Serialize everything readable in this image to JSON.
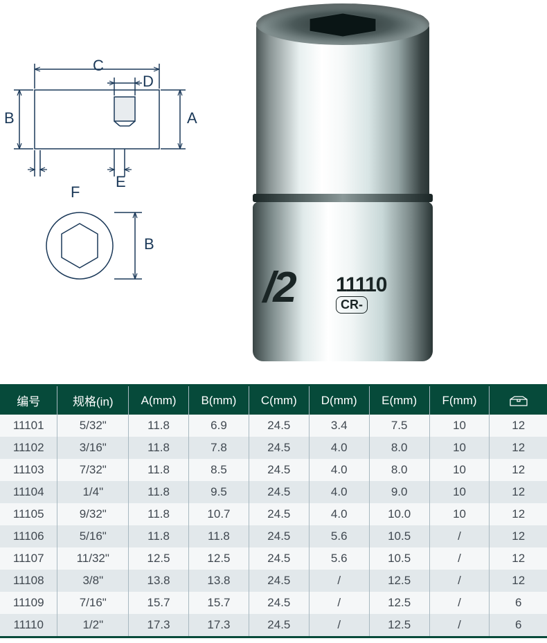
{
  "product": {
    "label_main": "/2",
    "label_num": "11110",
    "label_sub": "CR-"
  },
  "diagram": {
    "labels": {
      "A": "A",
      "B": "B",
      "B2": "B",
      "C": "C",
      "D": "D",
      "E": "E",
      "F": "F"
    },
    "stroke_color": "#1a3858",
    "stroke_width": 1.5
  },
  "table": {
    "header_bg": "#064a3a",
    "header_color": "#ffffff",
    "row_odd_bg": "#f5f7f8",
    "row_even_bg": "#e2e8eb",
    "border_color": "#a8b8c0",
    "text_color": "#404850",
    "fontsize": 17,
    "columns": [
      {
        "key": "num",
        "label": "编号"
      },
      {
        "key": "spec",
        "label": "规格(in)"
      },
      {
        "key": "a",
        "label": "A(mm)"
      },
      {
        "key": "b",
        "label": "B(mm)"
      },
      {
        "key": "c",
        "label": "C(mm)"
      },
      {
        "key": "d",
        "label": "D(mm)"
      },
      {
        "key": "e",
        "label": "E(mm)"
      },
      {
        "key": "f",
        "label": "F(mm)"
      },
      {
        "key": "icon",
        "label": "__ICON__"
      }
    ],
    "rows": [
      [
        "11101",
        "5/32\"",
        "11.8",
        "6.9",
        "24.5",
        "3.4",
        "7.5",
        "10",
        "12"
      ],
      [
        "11102",
        "3/16\"",
        "11.8",
        "7.8",
        "24.5",
        "4.0",
        "8.0",
        "10",
        "12"
      ],
      [
        "11103",
        "7/32\"",
        "11.8",
        "8.5",
        "24.5",
        "4.0",
        "8.0",
        "10",
        "12"
      ],
      [
        "11104",
        "1/4\"",
        "11.8",
        "9.5",
        "24.5",
        "4.0",
        "9.0",
        "10",
        "12"
      ],
      [
        "11105",
        "9/32\"",
        "11.8",
        "10.7",
        "24.5",
        "4.0",
        "10.0",
        "10",
        "12"
      ],
      [
        "11106",
        "5/16\"",
        "11.8",
        "11.8",
        "24.5",
        "5.6",
        "10.5",
        "/",
        "12"
      ],
      [
        "11107",
        "11/32\"",
        "12.5",
        "12.5",
        "24.5",
        "5.6",
        "10.5",
        "/",
        "12"
      ],
      [
        "11108",
        "3/8\"",
        "13.8",
        "13.8",
        "24.5",
        "/",
        "12.5",
        "/",
        "12"
      ],
      [
        "11109",
        "7/16\"",
        "15.7",
        "15.7",
        "24.5",
        "/",
        "12.5",
        "/",
        "6"
      ],
      [
        "11110",
        "1/2\"",
        "17.3",
        "17.3",
        "24.5",
        "/",
        "12.5",
        "/",
        "6"
      ]
    ]
  }
}
